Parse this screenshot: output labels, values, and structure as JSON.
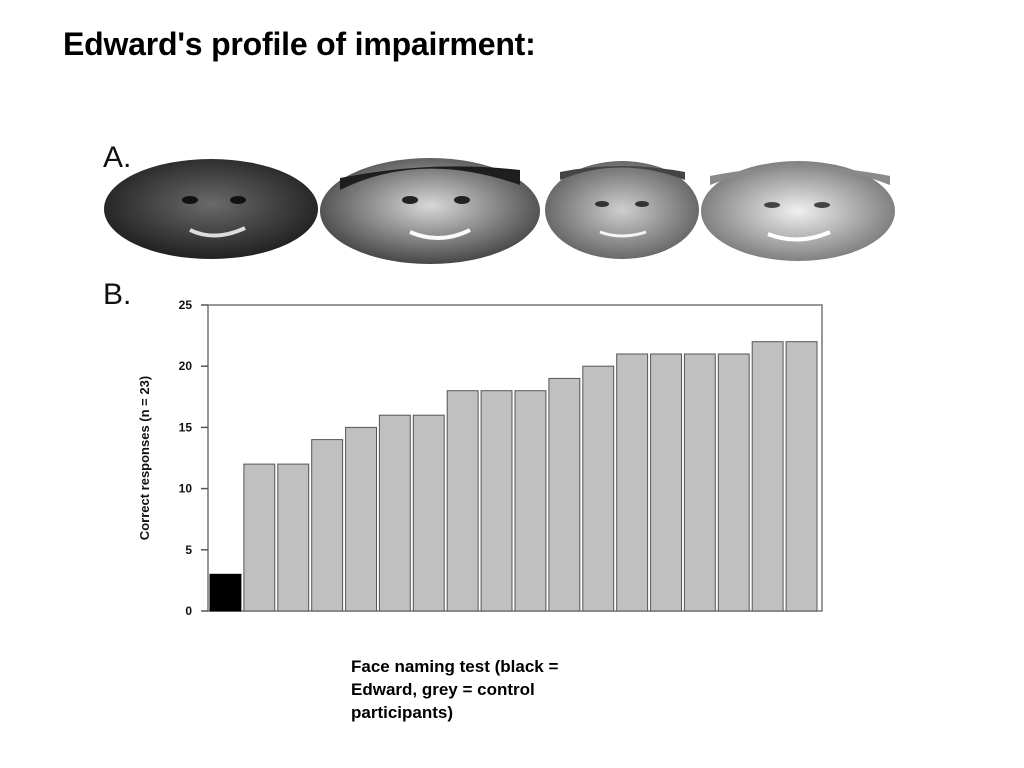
{
  "slide": {
    "title": "Edward's profile of impairment:",
    "panel_a_label": "A.",
    "panel_b_label": "B.",
    "caption": "Face naming test (black = Edward, grey = control participants)"
  },
  "faces": [
    {
      "name": "face-photo-1",
      "tone": "#2b2b2b"
    },
    {
      "name": "face-photo-2",
      "tone": "#5a5a5a"
    },
    {
      "name": "face-photo-3",
      "tone": "#777777"
    },
    {
      "name": "face-photo-4",
      "tone": "#9a9a9a"
    }
  ],
  "chart_data": {
    "type": "bar",
    "title": "",
    "xlabel": "",
    "ylabel": "Correct responses (n = 23)",
    "ylim": [
      0,
      25
    ],
    "yticks": [
      0,
      5,
      10,
      15,
      20,
      25
    ],
    "values": [
      3,
      12,
      12,
      14,
      15,
      16,
      16,
      18,
      18,
      18,
      19,
      20,
      21,
      21,
      21,
      21,
      22,
      22
    ],
    "highlight_index": 0,
    "colors": {
      "highlight": "#000000",
      "control": "#c0c0c0",
      "bar_edge": "#555555"
    },
    "grid": false
  }
}
